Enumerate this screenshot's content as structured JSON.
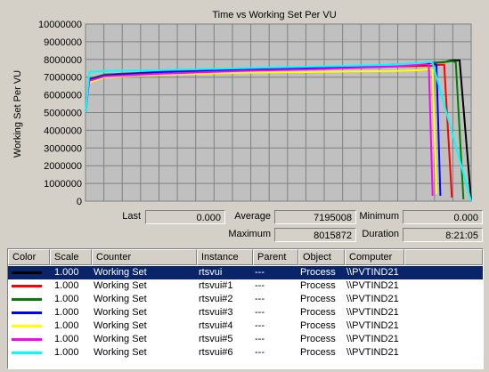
{
  "chart_data": {
    "type": "line",
    "title": "Time vs Working Set Per VU",
    "xlabel": "",
    "ylabel": "Working Set Per VU",
    "ylim": [
      0,
      10000000
    ],
    "y_ticks": [
      "0",
      "1000000",
      "2000000",
      "3000000",
      "4000000",
      "5000000",
      "6000000",
      "7000000",
      "8000000",
      "9000000",
      "10000000"
    ],
    "grid": true,
    "series": [
      {
        "name": "rtsvui",
        "color": "#000000",
        "x": [
          0,
          0.01,
          0.05,
          0.2,
          0.4,
          0.6,
          0.8,
          0.93,
          0.95,
          0.97,
          1.0
        ],
        "y": [
          5000000,
          6900000,
          7100000,
          7300000,
          7450000,
          7550000,
          7650000,
          7850000,
          7950000,
          7950000,
          0
        ]
      },
      {
        "name": "rtsvui#1",
        "color": "#ff0000",
        "x": [
          0,
          0.01,
          0.05,
          0.2,
          0.4,
          0.6,
          0.8,
          0.9,
          0.92,
          0.93,
          0.95
        ],
        "y": [
          5000000,
          6800000,
          7100000,
          7250000,
          7400000,
          7500000,
          7600000,
          7650000,
          7700000,
          7700000,
          200000
        ]
      },
      {
        "name": "rtsvui#2",
        "color": "#008000",
        "x": [
          0,
          0.01,
          0.05,
          0.2,
          0.4,
          0.6,
          0.8,
          0.93,
          0.95,
          0.96,
          0.98
        ],
        "y": [
          5000000,
          6900000,
          7150000,
          7300000,
          7450000,
          7550000,
          7700000,
          7850000,
          7900000,
          7850000,
          100000
        ]
      },
      {
        "name": "rtsvui#3",
        "color": "#0000ff",
        "x": [
          0,
          0.01,
          0.05,
          0.2,
          0.4,
          0.6,
          0.8,
          0.88,
          0.9,
          0.91,
          0.92
        ],
        "y": [
          5000000,
          6850000,
          7100000,
          7300000,
          7450000,
          7550000,
          7650000,
          7750000,
          7800000,
          7700000,
          300000
        ]
      },
      {
        "name": "rtsvui#4",
        "color": "#ffff00",
        "x": [
          0,
          0.01,
          0.05,
          0.2,
          0.4,
          0.6,
          0.8,
          0.87,
          0.89,
          0.9,
          0.91
        ],
        "y": [
          5000000,
          6700000,
          7000000,
          7150000,
          7250000,
          7300000,
          7350000,
          7400000,
          7450000,
          7400000,
          400000
        ]
      },
      {
        "name": "rtsvui#5",
        "color": "#ff00ff",
        "x": [
          0,
          0.01,
          0.05,
          0.2,
          0.4,
          0.6,
          0.8,
          0.86,
          0.88,
          0.89,
          0.9
        ],
        "y": [
          5000000,
          6800000,
          7050000,
          7200000,
          7350000,
          7450000,
          7600000,
          7700000,
          7750000,
          7700000,
          300000
        ]
      },
      {
        "name": "rtsvui#6",
        "color": "#00ffff",
        "x": [
          0,
          0.01,
          0.05,
          0.2,
          0.4,
          0.6,
          0.8,
          0.87,
          0.89,
          0.9,
          1.0
        ],
        "y": [
          5000000,
          7300000,
          7350000,
          7400000,
          7500000,
          7600000,
          7700000,
          7800000,
          7850000,
          7800000,
          0
        ]
      }
    ]
  },
  "stats": {
    "last_label": "Last",
    "last_value": "0.000",
    "average_label": "Average",
    "average_value": "7195008",
    "minimum_label": "Minimum",
    "minimum_value": "0.000",
    "maximum_label": "Maximum",
    "maximum_value": "8015872",
    "duration_label": "Duration",
    "duration_value": "8:21:05"
  },
  "table": {
    "columns": [
      "Color",
      "Scale",
      "Counter",
      "Instance",
      "Parent",
      "Object",
      "Computer"
    ],
    "rows": [
      {
        "color": "#000000",
        "scale": "1.000",
        "counter": "Working Set",
        "instance": "rtsvui",
        "parent": "---",
        "object": "Process",
        "computer": "\\\\PVTIND21",
        "selected": true
      },
      {
        "color": "#ff0000",
        "scale": "1.000",
        "counter": "Working Set",
        "instance": "rtsvui#1",
        "parent": "---",
        "object": "Process",
        "computer": "\\\\PVTIND21"
      },
      {
        "color": "#008000",
        "scale": "1.000",
        "counter": "Working Set",
        "instance": "rtsvui#2",
        "parent": "---",
        "object": "Process",
        "computer": "\\\\PVTIND21"
      },
      {
        "color": "#0000ff",
        "scale": "1.000",
        "counter": "Working Set",
        "instance": "rtsvui#3",
        "parent": "---",
        "object": "Process",
        "computer": "\\\\PVTIND21"
      },
      {
        "color": "#ffff00",
        "scale": "1.000",
        "counter": "Working Set",
        "instance": "rtsvui#4",
        "parent": "---",
        "object": "Process",
        "computer": "\\\\PVTIND21"
      },
      {
        "color": "#ff00ff",
        "scale": "1.000",
        "counter": "Working Set",
        "instance": "rtsvui#5",
        "parent": "---",
        "object": "Process",
        "computer": "\\\\PVTIND21"
      },
      {
        "color": "#00ffff",
        "scale": "1.000",
        "counter": "Working Set",
        "instance": "rtsvui#6",
        "parent": "---",
        "object": "Process",
        "computer": "\\\\PVTIND21"
      }
    ]
  }
}
